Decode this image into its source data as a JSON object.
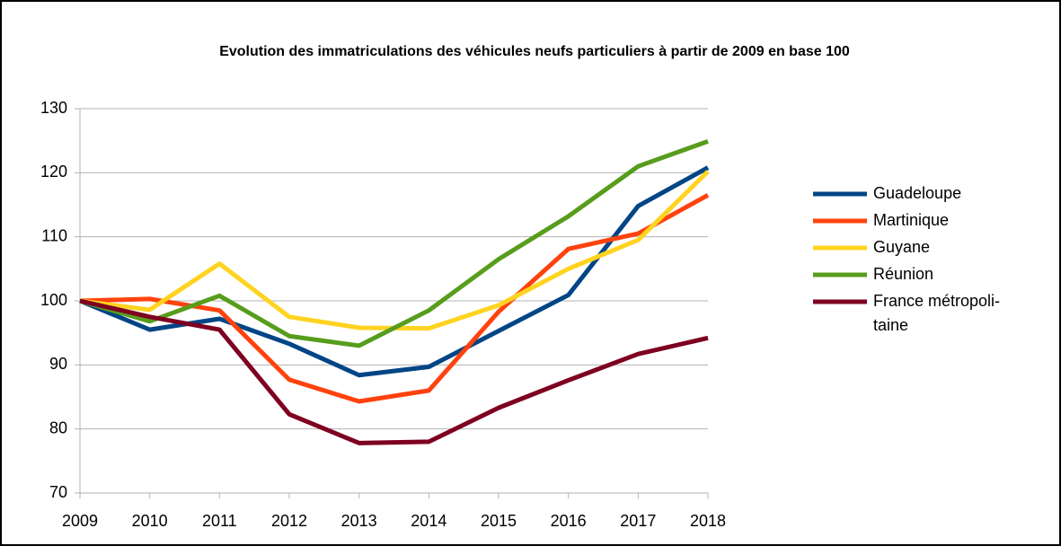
{
  "chart_data": {
    "type": "line",
    "title": "Evolution des immatriculations des véhicules neufs particuliers à partir de 2009 en base 100",
    "categories": [
      "2009",
      "2010",
      "2011",
      "2012",
      "2013",
      "2014",
      "2015",
      "2016",
      "2017",
      "2018"
    ],
    "series": [
      {
        "name": "Guadeloupe",
        "color": "#004586",
        "values": [
          100,
          95.5,
          97.2,
          93.3,
          88.4,
          89.7,
          95.3,
          100.9,
          114.8,
          120.8
        ]
      },
      {
        "name": "Martinique",
        "color": "#ff420e",
        "values": [
          100,
          100.3,
          98.5,
          87.7,
          84.3,
          86,
          98.3,
          108.1,
          110.5,
          116.5
        ]
      },
      {
        "name": "Guyane",
        "color": "#ffd320",
        "values": [
          100,
          98.6,
          105.8,
          97.5,
          95.8,
          95.7,
          99.3,
          105,
          109.5,
          120.2
        ]
      },
      {
        "name": "Réunion",
        "color": "#579d1c",
        "values": [
          100,
          96.8,
          100.8,
          94.5,
          93,
          98.5,
          106.5,
          113.2,
          121,
          124.9
        ]
      },
      {
        "name": "France métropoli-taine",
        "color": "#7e0021",
        "values": [
          100,
          97.5,
          95.5,
          82.3,
          77.8,
          78,
          83.3,
          87.6,
          91.7,
          94.2
        ]
      }
    ],
    "ylim": [
      70,
      130
    ],
    "yticks": [
      70,
      80,
      90,
      100,
      110,
      120,
      130
    ],
    "grid": true,
    "legend": "right"
  }
}
